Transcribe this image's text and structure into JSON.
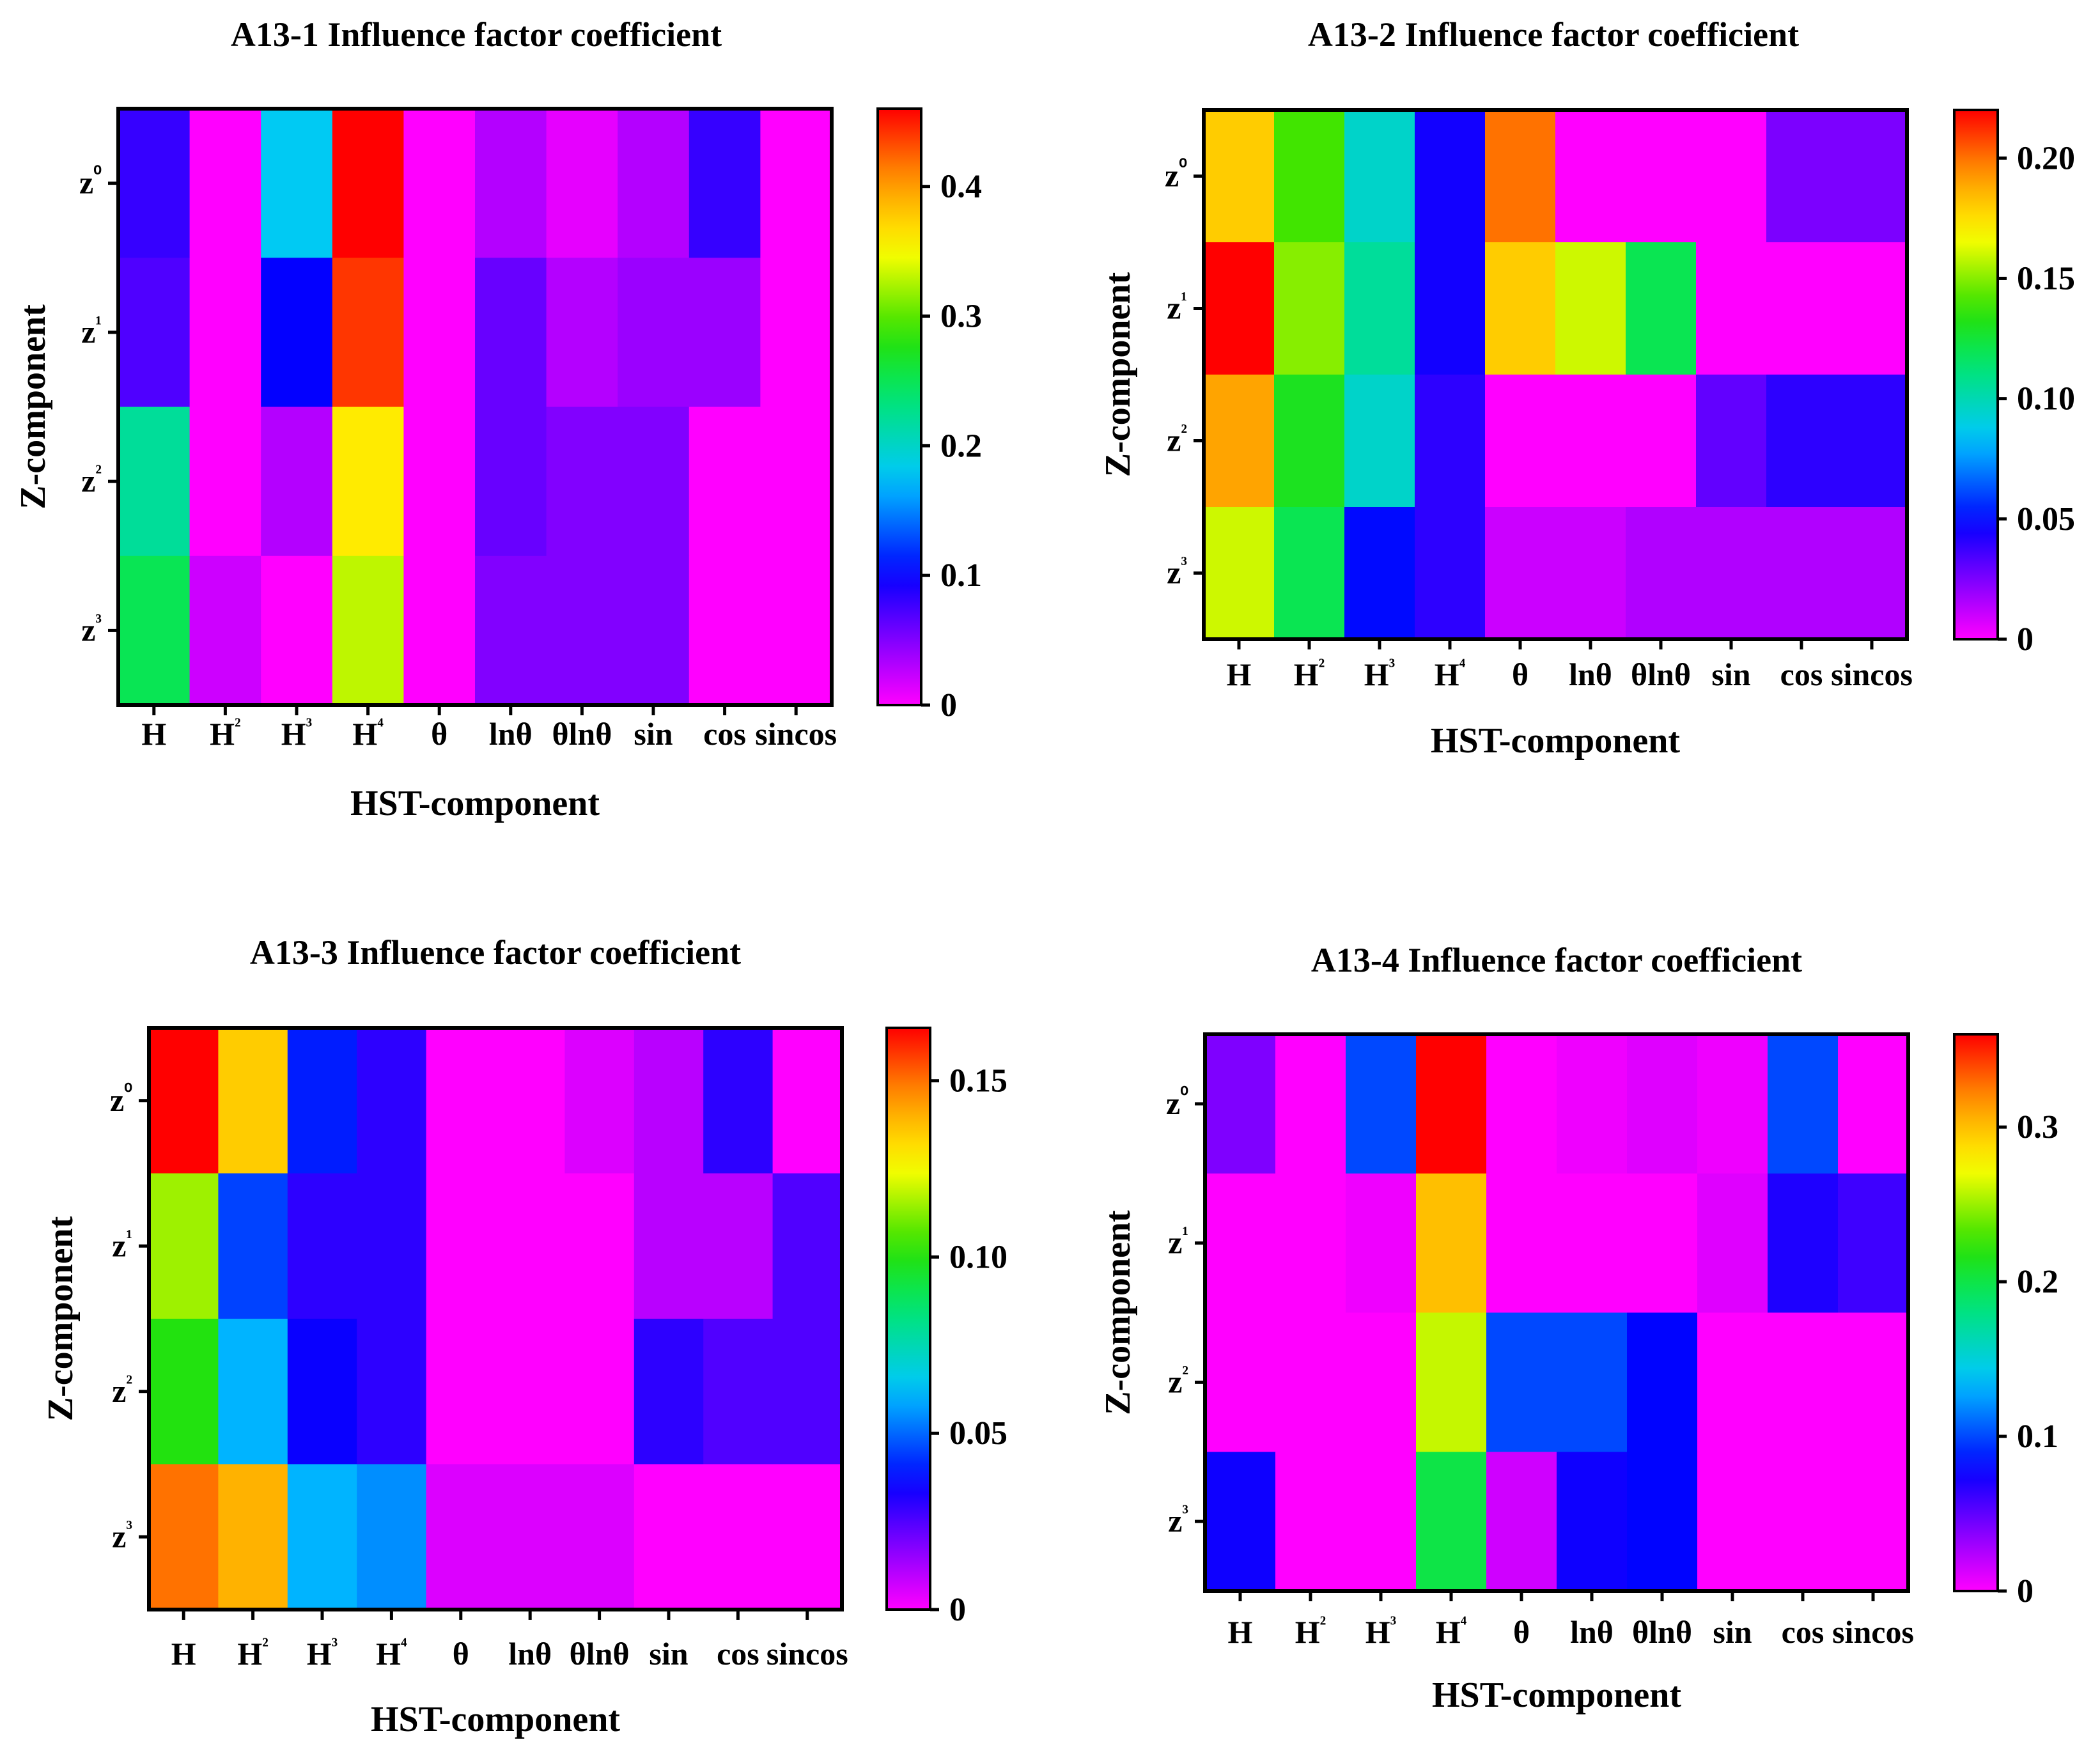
{
  "chart_data": [
    {
      "type": "heatmap",
      "title": "A13-1 Influence factor coefficient",
      "xlabel": "HST-component",
      "ylabel": "Z-component",
      "x_categories": [
        "H",
        "H²",
        "H³",
        "H⁴",
        "θ",
        "lnθ",
        "θlnθ",
        "sin",
        "cos",
        "sincos"
      ],
      "y_categories": [
        "z⁰",
        "z¹",
        "z²",
        "z³"
      ],
      "colorbar": {
        "range": [
          0,
          0.46
        ],
        "ticks": [
          0,
          0.1,
          0.2,
          0.3,
          0.4
        ],
        "tick_labels": [
          "0",
          "0.1",
          "0.2",
          "0.3",
          "0.4"
        ]
      },
      "values": [
        [
          0.08,
          0.0,
          0.18,
          0.46,
          0.0,
          0.03,
          0.01,
          0.03,
          0.08,
          0.0
        ],
        [
          0.07,
          0.0,
          0.1,
          0.44,
          0.0,
          0.06,
          0.03,
          0.04,
          0.04,
          0.0
        ],
        [
          0.22,
          0.0,
          0.03,
          0.36,
          0.0,
          0.06,
          0.05,
          0.05,
          0.0,
          0.0
        ],
        [
          0.25,
          0.02,
          0.0,
          0.33,
          0.0,
          0.05,
          0.05,
          0.05,
          0.0,
          0.0
        ]
      ]
    },
    {
      "type": "heatmap",
      "title": "A13-2 Influence factor coefficient",
      "xlabel": "HST-component",
      "ylabel": "Z-component",
      "x_categories": [
        "H",
        "H²",
        "H³",
        "H⁴",
        "θ",
        "lnθ",
        "θlnθ",
        "sin",
        "cos",
        "sincos"
      ],
      "y_categories": [
        "z⁰",
        "z¹",
        "z²",
        "z³"
      ],
      "colorbar": {
        "range": [
          0,
          0.22
        ],
        "ticks": [
          0,
          0.05,
          0.1,
          0.15,
          0.2
        ],
        "tick_labels": [
          "0",
          "0.05",
          "0.10",
          "0.15",
          "0.20"
        ]
      },
      "values": [
        [
          0.18,
          0.14,
          0.095,
          0.045,
          0.2,
          0.0,
          0.0,
          0.0,
          0.025,
          0.025
        ],
        [
          0.22,
          0.15,
          0.105,
          0.045,
          0.18,
          0.16,
          0.12,
          0.0,
          0.0,
          0.0
        ],
        [
          0.19,
          0.13,
          0.095,
          0.04,
          0.0,
          0.0,
          0.0,
          0.03,
          0.04,
          0.04
        ],
        [
          0.16,
          0.12,
          0.05,
          0.04,
          0.01,
          0.01,
          0.015,
          0.015,
          0.015,
          0.015
        ]
      ]
    },
    {
      "type": "heatmap",
      "title": "A13-3 Influence factor coefficient",
      "xlabel": "HST-component",
      "ylabel": "Z-component",
      "x_categories": [
        "H",
        "H²",
        "H³",
        "H⁴",
        "θ",
        "lnθ",
        "θlnθ",
        "sin",
        "cos",
        "sincos"
      ],
      "y_categories": [
        "z⁰",
        "z¹",
        "z²",
        "z³"
      ],
      "colorbar": {
        "range": [
          0,
          0.165
        ],
        "ticks": [
          0,
          0.05,
          0.1,
          0.15
        ],
        "tick_labels": [
          "0",
          "0.05",
          "0.10",
          "0.15"
        ]
      },
      "values": [
        [
          0.165,
          0.135,
          0.04,
          0.03,
          0.0,
          0.0,
          0.005,
          0.01,
          0.03,
          0.0
        ],
        [
          0.115,
          0.045,
          0.03,
          0.03,
          0.0,
          0.0,
          0.0,
          0.01,
          0.01,
          0.025
        ],
        [
          0.1,
          0.06,
          0.035,
          0.03,
          0.0,
          0.0,
          0.0,
          0.03,
          0.025,
          0.025
        ],
        [
          0.15,
          0.14,
          0.06,
          0.055,
          0.005,
          0.005,
          0.005,
          0.0,
          0.0,
          0.0
        ]
      ]
    },
    {
      "type": "heatmap",
      "title": "A13-4  Influence factor coefficient",
      "xlabel": "HST-component",
      "ylabel": "Z-component",
      "x_categories": [
        "H",
        "H²",
        "H³",
        "H⁴",
        "θ",
        "lnθ",
        "θlnθ",
        "sin",
        "cos",
        "sincos"
      ],
      "y_categories": [
        "z⁰",
        "z¹",
        "z²",
        "z³"
      ],
      "colorbar": {
        "range": [
          0,
          0.36
        ],
        "ticks": [
          0,
          0.1,
          0.2,
          0.3
        ],
        "tick_labels": [
          "0",
          "0.1",
          "0.2",
          "0.3"
        ]
      },
      "values": [
        [
          0.04,
          0.0,
          0.1,
          0.36,
          0.0,
          0.005,
          0.01,
          0.005,
          0.1,
          0.0
        ],
        [
          0.0,
          0.0,
          0.005,
          0.3,
          0.0,
          0.0,
          0.0,
          0.01,
          0.07,
          0.06
        ],
        [
          0.0,
          0.0,
          0.0,
          0.26,
          0.1,
          0.1,
          0.08,
          0.0,
          0.0,
          0.0
        ],
        [
          0.075,
          0.0,
          0.0,
          0.2,
          0.015,
          0.075,
          0.08,
          0.0,
          0.0,
          0.0
        ]
      ]
    }
  ]
}
